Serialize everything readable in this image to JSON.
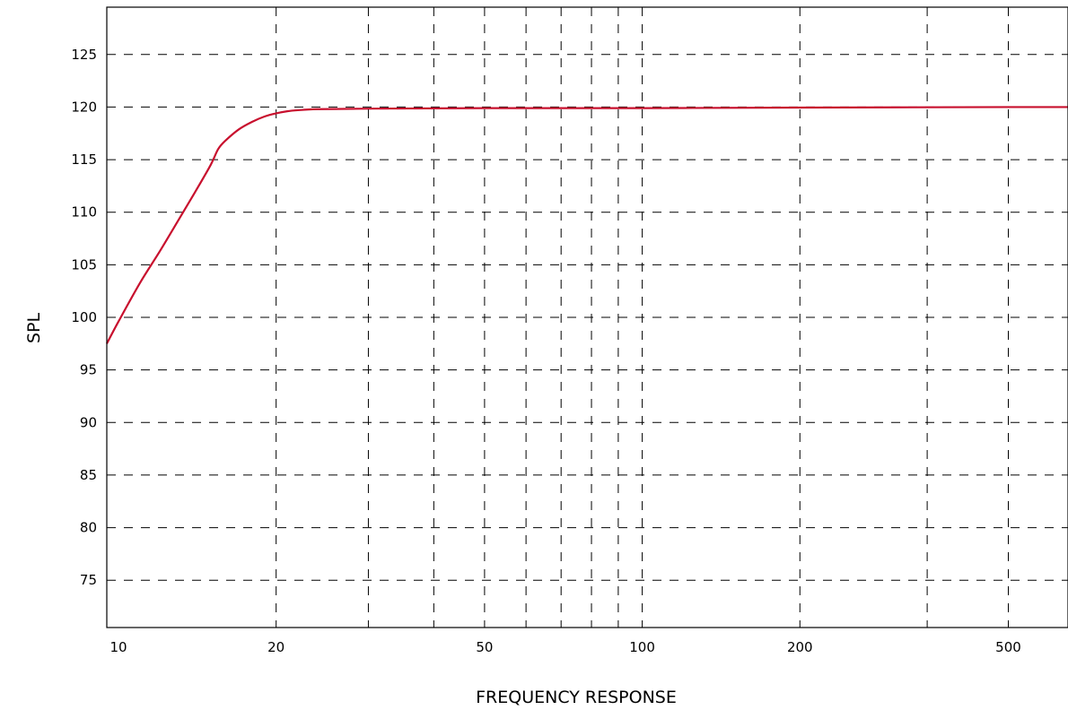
{
  "chart_data": {
    "type": "line",
    "title": "",
    "xlabel": "FREQUENCY RESPONSE",
    "ylabel": "SPL",
    "x_scale": "log",
    "xlim": [
      9.5,
      650
    ],
    "ylim": [
      70.5,
      129.5
    ],
    "x_ticks": [
      10,
      20,
      50,
      100,
      200,
      500
    ],
    "x_tick_labels": [
      "10",
      "20",
      "50",
      "100",
      "200",
      "500"
    ],
    "x_gridlines": [
      20,
      30,
      40,
      50,
      60,
      70,
      80,
      90,
      100,
      200,
      350,
      500
    ],
    "y_ticks": [
      75,
      80,
      85,
      90,
      95,
      100,
      105,
      110,
      115,
      120,
      125
    ],
    "y_tick_labels": [
      "75",
      "80",
      "85",
      "90",
      "95",
      "100",
      "105",
      "110",
      "115",
      "120",
      "125"
    ],
    "grid": true,
    "grid_style": "dashed",
    "series": [
      {
        "name": "",
        "color": "#c8102e",
        "x": [
          9.5,
          10,
          11,
          12,
          13,
          14,
          15,
          15.5,
          16,
          17,
          18,
          19,
          20,
          21,
          22,
          24,
          30,
          50,
          100,
          200,
          500,
          650
        ],
        "y": [
          97.5,
          99.6,
          103.3,
          106.3,
          109.2,
          111.9,
          114.5,
          116.0,
          116.8,
          117.9,
          118.6,
          119.1,
          119.4,
          119.6,
          119.7,
          119.8,
          119.85,
          119.9,
          119.9,
          119.95,
          120.0,
          120.0
        ]
      }
    ]
  },
  "colors": {
    "frame": "#000000",
    "grid": "#000000",
    "line": "#c8102e",
    "background": "#ffffff"
  }
}
